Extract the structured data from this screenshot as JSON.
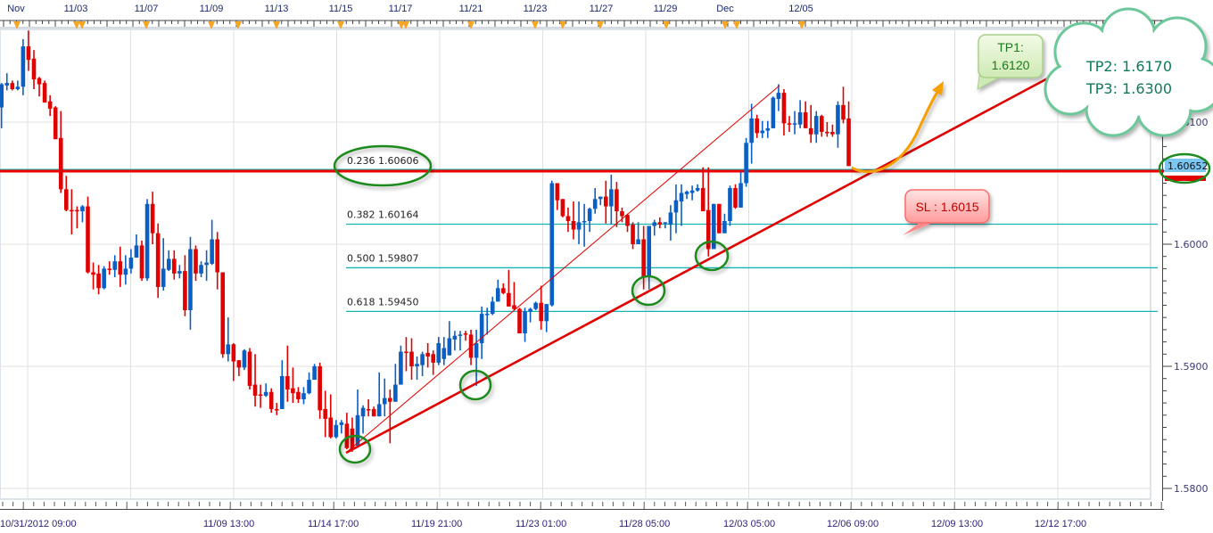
{
  "chart_data": {
    "type": "candlestick",
    "title": "",
    "xlabel": "",
    "ylabel": "",
    "ylim": [
      1.578,
      1.618
    ],
    "grid": true,
    "colors": {
      "up": "#0b5fc3",
      "down": "#e00000",
      "fib": "#19b3b3",
      "fib_main": "#ee0000",
      "grid": "#e0e0e0",
      "trend": "#e00000"
    },
    "y_ticks": [
      "1.6100",
      "1.6000",
      "1.5900",
      "1.5800"
    ],
    "y_tick_values": [
      1.61,
      1.6,
      1.59,
      1.58
    ],
    "top_ticks": [
      "Nov",
      "11/03",
      "11/07",
      "11/09",
      "11/13",
      "11/15",
      "11/17",
      "11/21",
      "11/23",
      "11/27",
      "11/29",
      "Dec",
      "12/05"
    ],
    "bottom_ticks": [
      "10/31/2012 09:00",
      "11/09 13:00",
      "11/14 17:00",
      "11/19 21:00",
      "11/23 01:00",
      "11/28 05:00",
      "12/03 05:00",
      "12/06 09:00",
      "12/09 13:00",
      "12/12 17:00"
    ],
    "ohlc_order": [
      "open",
      "high",
      "low",
      "close"
    ],
    "candles": [
      [
        1.6112,
        1.6132,
        1.6095,
        1.6131
      ],
      [
        1.613,
        1.614,
        1.6126,
        1.6132
      ],
      [
        1.6132,
        1.6134,
        1.6126,
        1.6127
      ],
      [
        1.6127,
        1.6134,
        1.6126,
        1.6129
      ],
      [
        1.6129,
        1.6168,
        1.6122,
        1.6162
      ],
      [
        1.6162,
        1.6175,
        1.6142,
        1.6151
      ],
      [
        1.6152,
        1.6159,
        1.6127,
        1.6135
      ],
      [
        1.6136,
        1.6137,
        1.6121,
        1.6131
      ],
      [
        1.6132,
        1.6134,
        1.6116,
        1.6116
      ],
      [
        1.6117,
        1.6122,
        1.6105,
        1.6111
      ],
      [
        1.6112,
        1.6113,
        1.6086,
        1.6086
      ],
      [
        1.6087,
        1.6109,
        1.6042,
        1.6045
      ],
      [
        1.6045,
        1.6056,
        1.6027,
        1.6028
      ],
      [
        1.6028,
        1.6045,
        1.6008,
        1.6027
      ],
      [
        1.6028,
        1.6031,
        1.6013,
        1.6027
      ],
      [
        1.6027,
        1.6032,
        1.6018,
        1.6031
      ],
      [
        1.6031,
        1.6039,
        1.5976,
        1.5977
      ],
      [
        1.5977,
        1.5985,
        1.5963,
        1.5975
      ],
      [
        1.5976,
        1.5983,
        1.5959,
        1.5964
      ],
      [
        1.5964,
        1.5982,
        1.5963,
        1.598
      ],
      [
        1.598,
        1.5986,
        1.5975,
        1.5979
      ],
      [
        1.5979,
        1.5991,
        1.5973,
        1.5986
      ],
      [
        1.5986,
        1.5998,
        1.5965,
        1.5975
      ],
      [
        1.5975,
        1.5991,
        1.5967,
        1.598
      ],
      [
        1.598,
        1.5996,
        1.5976,
        1.5989
      ],
      [
        1.5989,
        1.6008,
        1.5989,
        1.5999
      ],
      [
        1.5999,
        1.6003,
        1.597,
        1.5972
      ],
      [
        1.5972,
        1.6037,
        1.597,
        1.6033
      ],
      [
        1.6033,
        1.6043,
        1.6,
        1.6009
      ],
      [
        1.6009,
        1.6017,
        1.5956,
        1.5965
      ],
      [
        1.5965,
        1.6005,
        1.5962,
        1.598
      ],
      [
        1.5979,
        1.5995,
        1.5978,
        1.5988
      ],
      [
        1.5988,
        1.5995,
        1.5971,
        1.5976
      ],
      [
        1.5976,
        1.5983,
        1.5972,
        1.5978
      ],
      [
        1.5978,
        1.5991,
        1.5941,
        1.5946
      ],
      [
        1.5946,
        1.6006,
        1.593,
        1.5996
      ],
      [
        1.5996,
        1.5999,
        1.597,
        1.5976
      ],
      [
        1.5976,
        1.5986,
        1.5973,
        1.5983
      ],
      [
        1.5983,
        1.5995,
        1.597,
        1.5985
      ],
      [
        1.5984,
        1.602,
        1.5983,
        1.6004
      ],
      [
        1.6004,
        1.601,
        1.5963,
        1.5977
      ],
      [
        1.5977,
        1.5977,
        1.5907,
        1.591
      ],
      [
        1.591,
        1.594,
        1.5904,
        1.5918
      ],
      [
        1.5918,
        1.5919,
        1.5888,
        1.5904
      ],
      [
        1.5905,
        1.5905,
        1.5892,
        1.5899
      ],
      [
        1.5899,
        1.5914,
        1.5897,
        1.5913
      ],
      [
        1.5912,
        1.5915,
        1.5881,
        1.5884
      ],
      [
        1.5885,
        1.591,
        1.5867,
        1.5876
      ],
      [
        1.5877,
        1.5885,
        1.5866,
        1.5876
      ],
      [
        1.5876,
        1.5886,
        1.5875,
        1.5879
      ],
      [
        1.5879,
        1.5882,
        1.5862,
        1.5865
      ],
      [
        1.5865,
        1.587,
        1.586,
        1.5864
      ],
      [
        1.5865,
        1.5905,
        1.5865,
        1.5892
      ],
      [
        1.5892,
        1.5917,
        1.5871,
        1.5881
      ],
      [
        1.5882,
        1.5899,
        1.587,
        1.5878
      ],
      [
        1.5879,
        1.5883,
        1.587,
        1.5873
      ],
      [
        1.5873,
        1.5883,
        1.5869,
        1.5878
      ],
      [
        1.5878,
        1.5895,
        1.5877,
        1.5889
      ],
      [
        1.5889,
        1.5902,
        1.5889,
        1.59
      ],
      [
        1.59,
        1.5903,
        1.5857,
        1.5864
      ],
      [
        1.5865,
        1.588,
        1.5842,
        1.5857
      ],
      [
        1.5858,
        1.5877,
        1.5841,
        1.5842
      ],
      [
        1.5842,
        1.5856,
        1.5841,
        1.5852
      ],
      [
        1.5852,
        1.5856,
        1.5845,
        1.5854
      ],
      [
        1.5853,
        1.5862,
        1.5832,
        1.5833
      ],
      [
        1.5849,
        1.5858,
        1.583,
        1.5832
      ],
      [
        1.5835,
        1.5881,
        1.5834,
        1.586
      ],
      [
        1.5859,
        1.5868,
        1.5845,
        1.5866
      ],
      [
        1.5865,
        1.5873,
        1.5859,
        1.5864
      ],
      [
        1.5865,
        1.5867,
        1.5859,
        1.5859
      ],
      [
        1.5859,
        1.5895,
        1.5859,
        1.5869
      ],
      [
        1.5869,
        1.589,
        1.5859,
        1.5874
      ],
      [
        1.5874,
        1.5881,
        1.5837,
        1.5871
      ],
      [
        1.5871,
        1.5902,
        1.5871,
        1.5885
      ],
      [
        1.5885,
        1.5917,
        1.5885,
        1.5912
      ],
      [
        1.5912,
        1.5924,
        1.5896,
        1.5911
      ],
      [
        1.5912,
        1.5923,
        1.5889,
        1.59
      ],
      [
        1.59,
        1.5908,
        1.5889,
        1.5902
      ],
      [
        1.5901,
        1.5912,
        1.5892,
        1.591
      ],
      [
        1.5911,
        1.5919,
        1.5899,
        1.5908
      ],
      [
        1.591,
        1.5913,
        1.5893,
        1.5903
      ],
      [
        1.5903,
        1.5924,
        1.5901,
        1.5919
      ],
      [
        1.5906,
        1.5924,
        1.5901,
        1.5915
      ],
      [
        1.5909,
        1.5937,
        1.5909,
        1.5923
      ],
      [
        1.5922,
        1.5929,
        1.5913,
        1.5925
      ],
      [
        1.5925,
        1.5929,
        1.5913,
        1.5926
      ],
      [
        1.5927,
        1.5929,
        1.5921,
        1.5926
      ],
      [
        1.5926,
        1.593,
        1.5901,
        1.5907
      ],
      [
        1.5907,
        1.593,
        1.5884,
        1.5919
      ],
      [
        1.5919,
        1.5949,
        1.5906,
        1.5943
      ],
      [
        1.5942,
        1.5948,
        1.5926,
        1.5943
      ],
      [
        1.5943,
        1.5957,
        1.5942,
        1.5953
      ],
      [
        1.5953,
        1.5971,
        1.5953,
        1.5964
      ],
      [
        1.5964,
        1.5968,
        1.5959,
        1.596
      ],
      [
        1.596,
        1.5979,
        1.5949,
        1.5949
      ],
      [
        1.595,
        1.5969,
        1.5946,
        1.5947
      ],
      [
        1.5947,
        1.5948,
        1.5927,
        1.5927
      ],
      [
        1.5927,
        1.5948,
        1.592,
        1.5945
      ],
      [
        1.5945,
        1.5948,
        1.5936,
        1.5947
      ],
      [
        1.5947,
        1.5953,
        1.5946,
        1.5952
      ],
      [
        1.5952,
        1.5966,
        1.593,
        1.5937
      ],
      [
        1.5937,
        1.5951,
        1.5928,
        1.5951
      ],
      [
        1.595,
        1.6052,
        1.5949,
        1.605
      ],
      [
        1.605,
        1.605,
        1.6028,
        1.6036
      ],
      [
        1.6037,
        1.6037,
        1.6022,
        1.6023
      ],
      [
        1.6023,
        1.603,
        1.601,
        1.6019
      ],
      [
        1.6019,
        1.6035,
        1.6004,
        1.6012
      ],
      [
        1.6012,
        1.6035,
        1.6,
        1.6018
      ],
      [
        1.6018,
        1.6033,
        1.5998,
        1.6019
      ],
      [
        1.6019,
        1.603,
        1.601,
        1.6029
      ],
      [
        1.6029,
        1.6046,
        1.6025,
        1.6037
      ],
      [
        1.6037,
        1.6039,
        1.6032,
        1.6039
      ],
      [
        1.6039,
        1.6052,
        1.6017,
        1.6031
      ],
      [
        1.6031,
        1.6057,
        1.6016,
        1.6045
      ],
      [
        1.6045,
        1.6051,
        1.6014,
        1.6027
      ],
      [
        1.6027,
        1.603,
        1.6018,
        1.6023
      ],
      [
        1.6024,
        1.6025,
        1.601,
        1.6015
      ],
      [
        1.6016,
        1.6018,
        1.5996,
        1.6
      ],
      [
        1.6,
        1.6018,
        1.6,
        1.6004
      ],
      [
        1.6004,
        1.6015,
        1.5963,
        1.5973
      ],
      [
        1.5973,
        1.6015,
        1.5963,
        1.6015
      ],
      [
        1.6015,
        1.602,
        1.6007,
        1.6018
      ],
      [
        1.6018,
        1.6022,
        1.6013,
        1.6016
      ],
      [
        1.6017,
        1.6018,
        1.6013,
        1.6018
      ],
      [
        1.6016,
        1.6032,
        1.6003,
        1.6026
      ],
      [
        1.6026,
        1.6049,
        1.6009,
        1.6036
      ],
      [
        1.6035,
        1.6049,
        1.6015,
        1.6042
      ],
      [
        1.6041,
        1.6044,
        1.6037,
        1.6043
      ],
      [
        1.6042,
        1.6048,
        1.6036,
        1.6044
      ],
      [
        1.6044,
        1.6049,
        1.6043,
        1.6046
      ],
      [
        1.6046,
        1.6063,
        1.6027,
        1.6027
      ],
      [
        1.6028,
        1.6063,
        1.599,
        1.5996
      ],
      [
        1.5996,
        1.6033,
        1.5996,
        1.6033
      ],
      [
        1.6033,
        1.6033,
        1.6009,
        1.6009
      ],
      [
        1.6009,
        1.6025,
        1.6009,
        1.6019
      ],
      [
        1.6019,
        1.6048,
        1.6015,
        1.6046
      ],
      [
        1.6046,
        1.6049,
        1.6029,
        1.603
      ],
      [
        1.603,
        1.6059,
        1.603,
        1.605
      ],
      [
        1.605,
        1.6087,
        1.6047,
        1.6083
      ],
      [
        1.6083,
        1.6115,
        1.6066,
        1.6103
      ],
      [
        1.6103,
        1.6106,
        1.6087,
        1.6091
      ],
      [
        1.6091,
        1.6101,
        1.6087,
        1.6093
      ],
      [
        1.6093,
        1.6101,
        1.6087,
        1.6095
      ],
      [
        1.6095,
        1.6121,
        1.6095,
        1.612
      ],
      [
        1.6119,
        1.6131,
        1.6109,
        1.6124
      ],
      [
        1.6124,
        1.6127,
        1.6089,
        1.6099
      ],
      [
        1.6099,
        1.6105,
        1.6092,
        1.6098
      ],
      [
        1.6098,
        1.6109,
        1.609,
        1.6099
      ],
      [
        1.6098,
        1.6118,
        1.6095,
        1.6108
      ],
      [
        1.6108,
        1.6117,
        1.6095,
        1.6095
      ],
      [
        1.6095,
        1.6114,
        1.6083,
        1.609
      ],
      [
        1.609,
        1.6109,
        1.6083,
        1.6105
      ],
      [
        1.6105,
        1.6106,
        1.6088,
        1.6092
      ],
      [
        1.6092,
        1.61,
        1.6088,
        1.6091
      ],
      [
        1.6092,
        1.6098,
        1.6088,
        1.609
      ],
      [
        1.609,
        1.6117,
        1.6079,
        1.6114
      ],
      [
        1.6114,
        1.6129,
        1.6099,
        1.6102
      ],
      [
        1.6103,
        1.6117,
        1.6064,
        1.6064
      ]
    ],
    "fib_levels": [
      {
        "ratio": "0.236",
        "price": 1.60606,
        "label": "0.236 1.60606"
      },
      {
        "ratio": "0.382",
        "price": 1.60164,
        "label": "0.382 1.60164"
      },
      {
        "ratio": "0.500",
        "price": 1.59807,
        "label": "0.500 1.59807"
      },
      {
        "ratio": "0.618",
        "price": 1.5945,
        "label": "0.618 1.59450"
      }
    ],
    "current_price_label": "1.60652",
    "annotations": {
      "tp1_line1": "TP1:",
      "tp1_line2": "1.6120",
      "sl": "SL : 1.6015",
      "tp2": "TP2: 1.6170",
      "tp3": "TP3: 1.6300"
    }
  }
}
